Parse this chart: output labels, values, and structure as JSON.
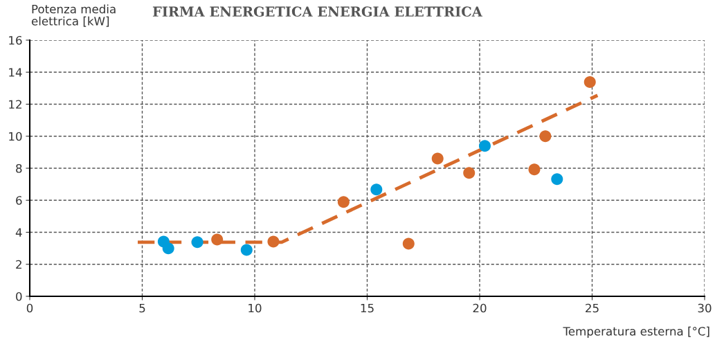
{
  "chart_data": {
    "type": "scatter",
    "title": "FIRMA ENERGETICA ENERGIA ELETTRICA",
    "ylabel": "Potenza media\nelettrica [kW]",
    "xlabel": "Temperatura esterna [°C]",
    "series": [
      {
        "color": "#009ddb",
        "x": [
          5.95,
          6.16,
          7.45,
          9.64,
          15.41,
          20.23,
          23.44
        ],
        "values": [
          3.42,
          2.99,
          3.38,
          2.9,
          6.67,
          9.39,
          7.32
        ]
      },
      {
        "color": "#d76b2c",
        "x": [
          8.33,
          10.83,
          13.95,
          16.84,
          18.13,
          19.53,
          22.43,
          22.92,
          24.9
        ],
        "values": [
          3.55,
          3.42,
          5.89,
          3.29,
          8.61,
          7.71,
          7.92,
          10.0,
          13.38
        ]
      },
      {
        "type": "line",
        "color": "#d76b2c",
        "line_style": "dashed",
        "x": [
          4.8,
          11.2,
          25.24
        ],
        "values": [
          3.38,
          3.38,
          12.55
        ]
      }
    ],
    "xlim": [
      0,
      30
    ],
    "xticks": [
      0,
      5,
      10,
      15,
      20,
      25,
      30
    ],
    "ylim": [
      0,
      16
    ],
    "yticks": [
      0,
      2,
      4,
      6,
      8,
      10,
      12,
      14,
      16
    ],
    "grid": true
  }
}
